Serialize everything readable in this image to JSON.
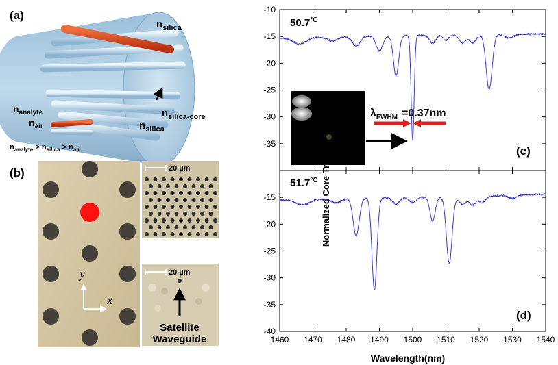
{
  "panel_labels": {
    "a": "(a)",
    "b": "(b)",
    "c": "(c)",
    "d": "(d)"
  },
  "fiber_labels": {
    "n_prefix": "n",
    "silica_top_sub": "silica",
    "silica_core_sub": "silica-core",
    "silica_bottom_sub": "silica",
    "analyte_sub": "analyte",
    "air_sub": "air",
    "relation": {
      "n1_sub": "analyte",
      "gt1": " > ",
      "n2_sub": "silica",
      "gt2": " > ",
      "n3_sub": "air"
    }
  },
  "micrograph": {
    "scale_bar_top": "20 µm",
    "scale_bar_bottom": "20 µm",
    "axis_y": "y",
    "axis_x": "x",
    "satellite_line1": "Satellite",
    "satellite_line2": "Waveguide"
  },
  "colors": {
    "analyte": "#d8461e",
    "trace": "#3a3acc",
    "marker_arrow": "#e02020",
    "highlight_hole": "#ff1010"
  },
  "chart_data": [
    {
      "type": "line",
      "panel": "(c)",
      "annotation": "50.7°C",
      "temp_value": "50.7",
      "temp_unit": "°C",
      "fwhm_symbol": "λ",
      "fwhm_sub": "FWHM",
      "fwhm_value": "=0.37nm",
      "xlim": [
        1460,
        1540
      ],
      "ylim": [
        -40,
        -10
      ],
      "yticks": [
        -10,
        -15,
        -20,
        -25,
        -30,
        -35
      ],
      "series": [
        {
          "name": "50.7°C",
          "baseline": [
            [
              1460,
              -15.3
            ],
            [
              1480,
              -15.0
            ],
            [
              1500,
              -14.8
            ],
            [
              1520,
              -14.7
            ],
            [
              1540,
              -14.5
            ]
          ],
          "dips": [
            [
              1466,
              -1.2,
              2.0
            ],
            [
              1476,
              -0.8,
              1.5
            ],
            [
              1483,
              -1.8,
              1.2
            ],
            [
              1490,
              -2.8,
              1.0
            ],
            [
              1495,
              -7.5,
              0.8
            ],
            [
              1500,
              -19.5,
              0.45
            ],
            [
              1506,
              -1.5,
              0.9
            ],
            [
              1510,
              -1.0,
              0.8
            ],
            [
              1515,
              -1.5,
              0.9
            ],
            [
              1518,
              -1.5,
              1.0
            ],
            [
              1523,
              -10.2,
              0.9
            ],
            [
              1529,
              -0.7,
              1.2
            ]
          ]
        }
      ]
    },
    {
      "type": "line",
      "panel": "(d)",
      "annotation": "51.7°C",
      "temp_value": "51.7",
      "temp_unit": "°C",
      "xlim": [
        1460,
        1540
      ],
      "ylim": [
        -40,
        -10
      ],
      "xticks": [
        1460,
        1470,
        1480,
        1490,
        1500,
        1510,
        1520,
        1530,
        1540
      ],
      "yticks": [
        -15,
        -20,
        -25,
        -30,
        -35,
        -40
      ],
      "xlabel": "Wavelength(nm)",
      "ylabel": "Normalized Core Transmission (dB)",
      "series": [
        {
          "name": "51.7°C",
          "baseline": [
            [
              1460,
              -15.5
            ],
            [
              1480,
              -15.2
            ],
            [
              1500,
              -15.0
            ],
            [
              1520,
              -14.8
            ],
            [
              1540,
              -14.4
            ]
          ],
          "dips": [
            [
              1467,
              -1.0,
              2.0
            ],
            [
              1477,
              -0.8,
              1.5
            ],
            [
              1483,
              -7.0,
              0.9
            ],
            [
              1488.5,
              -17.2,
              0.75
            ],
            [
              1495,
              -1.2,
              1.0
            ],
            [
              1500,
              -1.0,
              1.0
            ],
            [
              1506,
              -4.5,
              0.8
            ],
            [
              1511,
              -12.4,
              0.85
            ],
            [
              1515,
              -1.5,
              1.0
            ],
            [
              1518,
              -1.6,
              1.0
            ],
            [
              1521,
              -1.2,
              1.0
            ],
            [
              1530,
              -0.6,
              1.2
            ]
          ]
        }
      ]
    }
  ]
}
